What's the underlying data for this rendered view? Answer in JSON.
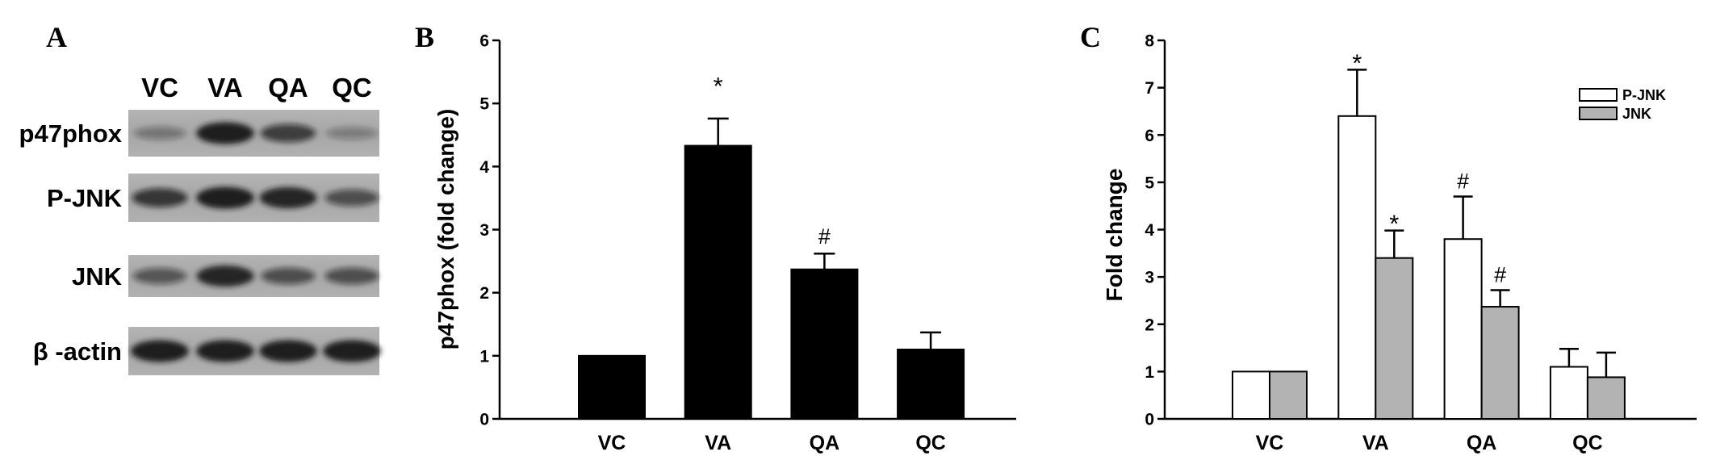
{
  "figure": {
    "panel_a": {
      "label": "A",
      "lanes": [
        "VC",
        "VA",
        "QA",
        "QC"
      ],
      "blots": [
        {
          "label": "p47phox",
          "band_intensity": [
            0.35,
            0.95,
            0.7,
            0.3
          ]
        },
        {
          "label": "P-JNK",
          "band_intensity": [
            0.75,
            0.95,
            0.9,
            0.6
          ]
        },
        {
          "label": "JNK",
          "band_intensity": [
            0.55,
            0.9,
            0.6,
            0.6
          ]
        },
        {
          "label": "β -actin",
          "band_intensity": [
            0.95,
            0.95,
            0.95,
            0.95
          ]
        }
      ],
      "band_color": "#141414"
    },
    "panel_b": {
      "label": "B"
    },
    "panel_c": {
      "label": "C"
    }
  },
  "chart_data": [
    {
      "type": "bar",
      "categories": [
        "VC",
        "VA",
        "QA",
        "QC"
      ],
      "values": [
        1.0,
        4.33,
        2.37,
        1.1
      ],
      "error": [
        0,
        0.43,
        0.25,
        0.27
      ],
      "markers": [
        "",
        "*",
        "#",
        ""
      ],
      "ylabel": "p47phox (fold change)",
      "ylim": [
        0,
        6
      ],
      "yticks": [
        0,
        1,
        2,
        3,
        4,
        5,
        6
      ],
      "grid": false,
      "color": "#000000"
    },
    {
      "type": "bar",
      "categories": [
        "VC",
        "VA",
        "QA",
        "QC"
      ],
      "series": [
        {
          "name": "P-JNK",
          "values": [
            1.0,
            6.4,
            3.8,
            1.1
          ],
          "error": [
            0,
            0.98,
            0.9,
            0.38
          ],
          "markers": [
            "",
            "*",
            "#",
            ""
          ],
          "color": "#ffffff"
        },
        {
          "name": "JNK",
          "values": [
            1.0,
            3.4,
            2.37,
            0.88
          ],
          "error": [
            0,
            0.58,
            0.35,
            0.52
          ],
          "markers": [
            "",
            "*",
            "#",
            ""
          ],
          "color": "#b3b3b3"
        }
      ],
      "ylabel": "Fold change",
      "ylim": [
        0,
        8
      ],
      "yticks": [
        0,
        1,
        2,
        3,
        4,
        5,
        6,
        7,
        8
      ],
      "grid": false,
      "legend": "top-right"
    }
  ]
}
